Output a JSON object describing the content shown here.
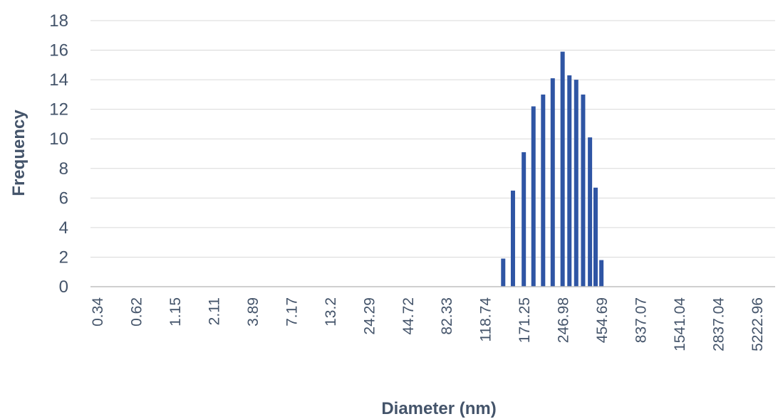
{
  "chart_data": {
    "type": "bar",
    "title": "",
    "xlabel": "Diameter (nm)",
    "ylabel": "Frequency",
    "ylim": [
      0,
      18
    ],
    "yticks": [
      0,
      2,
      4,
      6,
      8,
      10,
      12,
      14,
      16,
      18
    ],
    "grid": true,
    "legend": "none",
    "bar_color": "#2f55a4",
    "x_tick_labels": [
      "0.34",
      "0.62",
      "1.15",
      "2.11",
      "3.89",
      "7.17",
      "13.2",
      "24.29",
      "44.72",
      "82.33",
      "118.74",
      "171.25",
      "246.98",
      "454.69",
      "837.07",
      "1541.04",
      "2837.04",
      "5222.96"
    ],
    "bars": [
      {
        "x": 141.0,
        "value": 1.9
      },
      {
        "x": 154.6,
        "value": 6.5
      },
      {
        "x": 171.25,
        "value": 9.1
      },
      {
        "x": 187.6,
        "value": 12.2
      },
      {
        "x": 205.5,
        "value": 13.0
      },
      {
        "x": 225.0,
        "value": 14.1
      },
      {
        "x": 246.98,
        "value": 15.9
      },
      {
        "x": 275.0,
        "value": 14.3
      },
      {
        "x": 306.0,
        "value": 14.0
      },
      {
        "x": 341.0,
        "value": 13.0
      },
      {
        "x": 380.0,
        "value": 10.1
      },
      {
        "x": 415.0,
        "value": 6.7
      },
      {
        "x": 454.69,
        "value": 1.8
      }
    ]
  }
}
